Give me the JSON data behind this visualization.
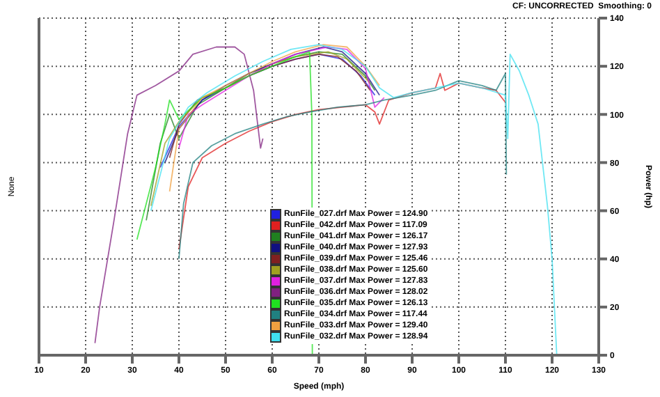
{
  "chart_data": {
    "type": "line",
    "xlabel": "Speed (mph)",
    "ylabel": "None",
    "y2label": "Power (hp)",
    "annotations": [
      "CF: UNCORRECTED  Smoothing: 0"
    ],
    "xlim": [
      10,
      130
    ],
    "xticks": [
      10,
      20,
      30,
      40,
      50,
      60,
      70,
      80,
      90,
      100,
      110,
      120,
      130
    ],
    "y2lim": [
      0,
      140
    ],
    "y2ticks": [
      0,
      20,
      40,
      60,
      80,
      100,
      120,
      140
    ],
    "grid": true,
    "legend": "bottom",
    "marker": "none",
    "line_style": "solid",
    "series": [
      {
        "name": "RunFile_027.drf Max Power = 124.90",
        "color": "#2020e0",
        "axis": "y2",
        "x": [
          36,
          40,
          45,
          50,
          55,
          60,
          65,
          70,
          75,
          79,
          82
        ],
        "values": [
          78,
          95,
          106,
          111,
          116,
          120,
          123,
          125,
          123,
          116,
          108
        ]
      },
      {
        "name": "RunFile_042.drf Max Power = 117.09",
        "color": "#e02020",
        "axis": "y2",
        "x": [
          40,
          42,
          45,
          50,
          55,
          60,
          65,
          70,
          75,
          80,
          82,
          83,
          85,
          90,
          95,
          96,
          97,
          100,
          105,
          108,
          110
        ],
        "values": [
          44,
          70,
          82,
          88,
          93,
          97,
          100,
          102,
          103,
          104,
          101,
          96,
          106,
          109,
          111,
          117,
          110,
          113,
          111,
          110,
          105
        ]
      },
      {
        "name": "RunFile_041.drf Max Power = 126.17",
        "color": "#208020",
        "axis": "y2",
        "x": [
          33,
          36,
          38,
          40,
          44,
          50,
          55,
          60,
          65,
          70,
          75,
          80,
          82
        ],
        "values": [
          56,
          88,
          100,
          90,
          104,
          111,
          117,
          121,
          124,
          126,
          125,
          116,
          110
        ]
      },
      {
        "name": "RunFile_040.drf Max Power = 127.93",
        "color": "#101080",
        "axis": "y2",
        "x": [
          37,
          40,
          45,
          50,
          55,
          60,
          65,
          71,
          75,
          80,
          83
        ],
        "values": [
          80,
          94,
          106,
          112,
          117,
          121,
          125,
          128,
          126,
          117,
          108
        ]
      },
      {
        "name": "RunFile_039.drf Max Power = 125.46",
        "color": "#802020",
        "axis": "y2",
        "x": [
          38,
          40,
          44,
          50,
          55,
          60,
          65,
          70,
          74,
          78,
          81
        ],
        "values": [
          82,
          96,
          106,
          111,
          116,
          120,
          123,
          125,
          124,
          118,
          110
        ]
      },
      {
        "name": "RunFile_038.drf Max Power = 125.60",
        "color": "#a0a020",
        "axis": "y2",
        "x": [
          34,
          37,
          40,
          45,
          50,
          55,
          60,
          65,
          72,
          76,
          81
        ],
        "values": [
          62,
          88,
          97,
          107,
          111,
          116,
          121,
          124,
          126,
          123,
          113
        ]
      },
      {
        "name": "RunFile_037.drf Max Power = 127.83",
        "color": "#e020e0",
        "axis": "y2",
        "x": [
          40,
          42,
          45,
          50,
          55,
          60,
          65,
          72,
          76,
          80,
          82,
          84
        ],
        "values": [
          86,
          100,
          104,
          110,
          116,
          121,
          125,
          128,
          127,
          119,
          103,
          107
        ]
      },
      {
        "name": "RunFile_036.drf Max Power = 128.02",
        "color": "#802080",
        "axis": "y2",
        "x": [
          22,
          23,
          26,
          29,
          31,
          35,
          40,
          43,
          48,
          52,
          54,
          56,
          57.5,
          58
        ],
        "values": [
          5,
          20,
          55,
          92,
          108,
          112,
          118,
          125,
          128,
          128,
          125,
          110,
          86,
          90
        ]
      },
      {
        "name": "RunFile_035.drf Max Power = 126.13",
        "color": "#20e020",
        "axis": "y2",
        "x": [
          31,
          35,
          37,
          38,
          40,
          45,
          50,
          55,
          60,
          65,
          68,
          68.5,
          68.6
        ],
        "values": [
          48,
          78,
          96,
          106,
          98,
          107,
          111,
          116,
          120,
          124,
          126,
          100,
          0
        ]
      },
      {
        "name": "RunFile_034.drf Max Power = 117.44",
        "color": "#208080",
        "axis": "y2",
        "x": [
          40,
          41,
          43,
          47,
          52,
          58,
          63,
          68,
          74,
          80,
          84,
          90,
          95,
          100,
          105,
          108,
          110,
          110.2
        ],
        "values": [
          40,
          63,
          80,
          87,
          92,
          96,
          99,
          101,
          103,
          104,
          106,
          108,
          110,
          114,
          112,
          110,
          117,
          75
        ]
      },
      {
        "name": "RunFile_033.drf Max Power = 129.40",
        "color": "#f0a040",
        "axis": "y2",
        "x": [
          38,
          40,
          45,
          50,
          55,
          60,
          65,
          71,
          76,
          80,
          83
        ],
        "values": [
          68,
          94,
          107,
          112,
          117,
          122,
          126,
          129,
          128,
          120,
          112
        ]
      },
      {
        "name": "RunFile_032.drf Max Power = 128.94",
        "color": "#40e0f0",
        "axis": "y2",
        "x": [
          34,
          38,
          42,
          46,
          52,
          58,
          64,
          70,
          75,
          80,
          83,
          86,
          90,
          95,
          100,
          105,
          110,
          110.5,
          111,
          113,
          115,
          117,
          119,
          120,
          121
        ],
        "values": [
          60,
          90,
          103,
          109,
          116,
          122,
          127,
          129,
          127,
          120,
          111,
          107,
          109,
          111,
          113,
          111,
          108,
          90,
          125,
          118,
          108,
          96,
          62,
          40,
          0
        ]
      }
    ]
  }
}
